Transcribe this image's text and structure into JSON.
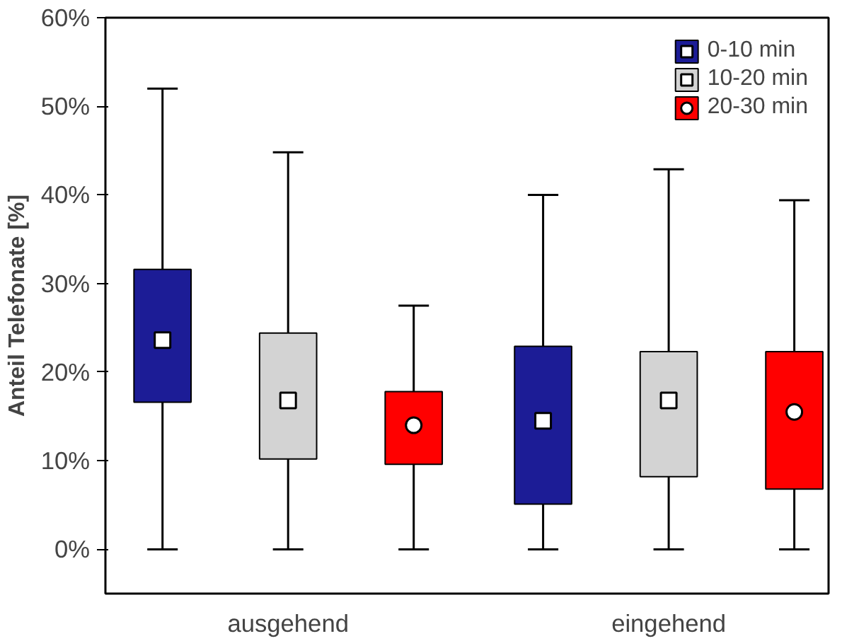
{
  "chart_data": {
    "type": "box",
    "ylabel": "Anteil Telefonate [%]",
    "categories": [
      "ausgehend",
      "eingehend"
    ],
    "ylim": [
      -5,
      60
    ],
    "yticks": [
      {
        "value": 0,
        "label": "0%"
      },
      {
        "value": 10,
        "label": "10%"
      },
      {
        "value": 20,
        "label": "20%"
      },
      {
        "value": 30,
        "label": "30%"
      },
      {
        "value": 40,
        "label": "40%"
      },
      {
        "value": 50,
        "label": "50%"
      },
      {
        "value": 60,
        "label": "60%"
      }
    ],
    "legend": "top right",
    "series": [
      {
        "name": "0-10 min",
        "color": "#1c1c96",
        "marker": "square",
        "boxes": [
          {
            "low": 0,
            "q1": 16.6,
            "median": 23.6,
            "q3": 31.6,
            "high": 52
          },
          {
            "low": 0,
            "q1": 5.1,
            "median": 14.5,
            "q3": 22.9,
            "high": 40
          }
        ]
      },
      {
        "name": "10-20 min",
        "color": "#d3d3d3",
        "marker": "square",
        "boxes": [
          {
            "low": 0,
            "q1": 10.2,
            "median": 16.8,
            "q3": 24.4,
            "high": 44.8
          },
          {
            "low": 0,
            "q1": 8.2,
            "median": 16.8,
            "q3": 22.3,
            "high": 42.9
          }
        ]
      },
      {
        "name": "20-30 min",
        "color": "#ff0000",
        "marker": "circle",
        "boxes": [
          {
            "low": 0,
            "q1": 9.6,
            "median": 14.0,
            "q3": 17.8,
            "high": 27.5
          },
          {
            "low": 0,
            "q1": 6.8,
            "median": 15.5,
            "q3": 22.3,
            "high": 39.4
          }
        ]
      }
    ]
  }
}
